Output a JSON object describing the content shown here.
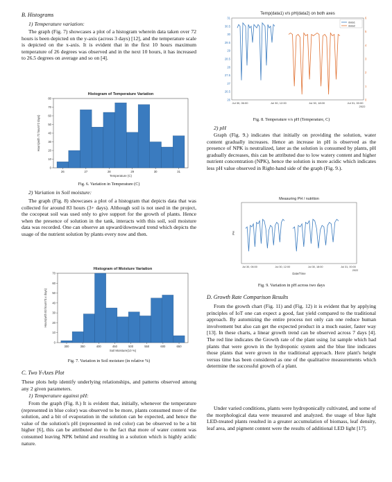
{
  "left": {
    "sec_b": "B.  Histograms",
    "sub1": "1)  Temperature variation:",
    "para1": "The graph (Fig. 7) showcases a plot of a histogram wherein data taken over 72 hours is been depicted on the y-axis (across 3 days) [12], and the temperature scale is depicted on the x-axis. It is evident that in the first 10 hours maximum temperature of 26 degrees was observed and in the next 10 hours, it has increased to 26.5 degrees on average and so on [4].",
    "fig6_caption": "Fig. 6. Variation in Temperature (C)",
    "sub2": "2)  Variation in Soil moisture:",
    "para2": "The graph (Fig. 8) showcases a plot of a histogram that depicts data that was collected for around 83 hours (3+ days). Although soil is not used in the project, the cocopeat soil was used only to give support for the growth of plants. Hence when the presence of solution in the tank, interacts with this soil, soil moisture data was recorded. One can observe an upward/downward trend which depicts the usage of the nutrient solution by plants every now and then.",
    "fig7_caption": "Fig. 7. Variation in Soil moisture (in relative %)",
    "sec_c": "C.  Two Y-Axes Plot",
    "para3": "These plots help identify underlying relationships, and patterns observed among any 2 given parameters.",
    "sub3": "1)  Temperature against pH:",
    "para4": "From the graph (Fig. 8.) It is evident that, initially, whenever the temperature (represented in blue color) was observed to be more, plants consumed more of the solution, and a bit of evaporation in the solution can be expected, and hence the value of the solution's pH (represented in red color) can be observed to be a bit higher [6], this can be attributed due to the fact that more of water content was consumed leaving NPK behind and resulting in a solution which is highly acidic nature."
  },
  "right": {
    "fig8_caption": "Fig. 8. Temperature v/s pH (Temperature, C)",
    "sub_ph": "2)  pH",
    "para5": "Graph (Fig. 9.) indicates that initially on providing the solution, water content gradually increases. Hence an increase in pH is observed as the presence of NPK is neutralized, later as the solution is consumed by plants, pH gradually decreases, this can be attributed due to low watery content and higher nutrient concentration (NPK), hence the solution is more acidic which indicates less pH value observed in Right-hand side of the graph (Fig. 9.).",
    "fig9_caption": "Fig. 9. Variation in pH across two days",
    "sec_d": "D.  Growth Rate Comparison Results",
    "para6": "From the growth chart (Fig. 11) and (Fig. 12) it is evident that by applying principles of IoT one can expect a good, fast yield compared to the traditional approach. By automizing the entire process not only can one reduce human involvement but also can get the expected product in a much easier, faster way [13]. In these charts, a linear growth trend can be observed across 7 days [4]. The red line indicates the Growth rate of the plant using 1st sample which had plants that were grown in the hydroponic system and the blue line indicates those plants that were grown in the traditional approach. Here plant's height versus time has been considered as one of the qualitative measurements which determine the successful growth of a plant.",
    "para7": "Under varied conditions, plants were hydroponically cultivated, and some of the morphological data were measured and analyzed. the usage of blue light LED-treated plants resulted in a greater accumulation of biomass, leaf density, leaf area, and pigment content were the results of additional LED light [17]."
  },
  "chart_data": [
    {
      "type": "bar",
      "title": "Histogram of Temperature Variation",
      "xlabel": "Temperature (C)",
      "ylabel": "Hours(with 72 hours*2 days)",
      "categories": [
        "25.8",
        "26.3",
        "26.8",
        "27.3",
        "27.8",
        "28.3",
        "28.8",
        "29.3",
        "29.8",
        "30.3",
        "30.8"
      ],
      "values": [
        7,
        20,
        67,
        47,
        64,
        75,
        41,
        73,
        30,
        24,
        37
      ],
      "xticks": [
        "26",
        "27",
        "28",
        "29",
        "30",
        "31"
      ],
      "yticks": [
        "0",
        "10",
        "20",
        "30",
        "40",
        "50",
        "60",
        "70",
        "80"
      ],
      "ylim": [
        0,
        80
      ],
      "color": "#3a7bbf"
    },
    {
      "type": "bar",
      "title": "Histogram of Moisture Variation",
      "xlabel": "Soil Moisture(10 %)",
      "ylabel": "Hours(with 83 hours*3.x days)",
      "categories": [
        "320",
        "355",
        "390",
        "425",
        "460",
        "495",
        "530",
        "565",
        "600",
        "635",
        "670"
      ],
      "values": [
        2,
        11,
        29,
        70,
        35,
        26,
        31,
        27,
        45,
        48,
        7
      ],
      "xticks": [
        "300",
        "350",
        "400",
        "450",
        "500",
        "550",
        "600",
        "650"
      ],
      "yticks": [
        "0",
        "10",
        "20",
        "30",
        "40",
        "50",
        "60",
        "70"
      ],
      "ylim": [
        0,
        70
      ],
      "color": "#3a7bbf"
    },
    {
      "type": "line",
      "title": "Temp(data1) v/s pH(data2) on both axes",
      "ylim": [
        26,
        31
      ],
      "y2lim": [
        0,
        6
      ],
      "yticks": [
        "26",
        "26.5",
        "27",
        "27.5",
        "28",
        "28.5",
        "29",
        "29.5",
        "30",
        "30.5",
        "31"
      ],
      "y2ticks": [
        "0",
        "1",
        "2",
        "3",
        "4",
        "5",
        "6"
      ],
      "xticks": [
        "Jul 30, 06:00",
        "Jul 30, 12:00",
        "Jul 30, 18:00",
        "Jul 31, 00:00\n2022"
      ],
      "series": [
        {
          "name": "data1",
          "color": "#3a7bbf",
          "values": [
            30.4,
            30.6,
            30.5,
            27.2,
            30.7,
            30.6,
            30.5,
            28.1,
            30.6,
            30.4,
            30.5,
            29.5,
            30.6,
            30.5
          ]
        },
        {
          "name": "data2",
          "color": "#e07030",
          "values": [
            4.8,
            4.9,
            4.8,
            1.0,
            4.7,
            4.8,
            4.6,
            0.4,
            4.9,
            4.7,
            4.8,
            1.5,
            4.8,
            4.7
          ]
        }
      ]
    },
    {
      "type": "line",
      "title": "Measuring PH / nutrition",
      "xlabel": "Date/Time",
      "ylabel": "PH",
      "xticks": [
        "Jul 30, 06:00",
        "Jul 30, 12:00",
        "Jul 30, 18:00",
        "Jul 31, 00:00\n2022"
      ],
      "series": [
        {
          "name": "",
          "color": "#3a7bbf",
          "values": [
            6.5,
            6.6,
            6.4,
            6.7,
            6.6,
            6.8,
            6.7,
            6.9,
            6.8,
            7.0,
            6.9,
            7.1,
            7.0
          ]
        }
      ]
    }
  ]
}
